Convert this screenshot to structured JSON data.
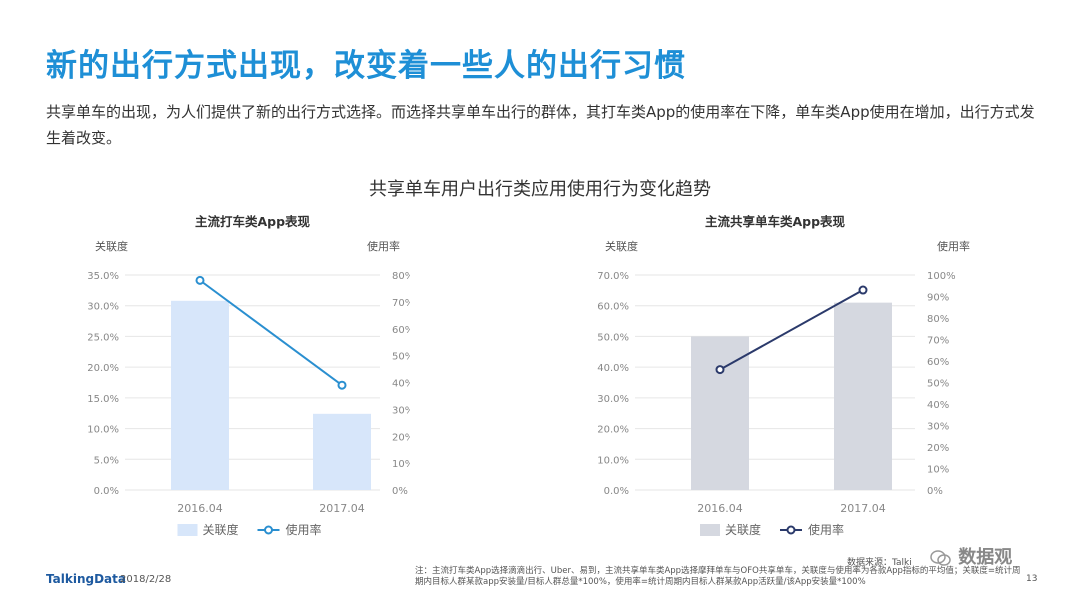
{
  "page": {
    "title": "新的出行方式出现，改变着一些人的出行习惯",
    "description": "共享单车的出现，为人们提供了新的出行方式选择。而选择共享单车出行的群体，其打车类App的使用率在下降，单车类App使用在增加，出行方式发生着改变。",
    "chart_section_title": "共享单车用户出行类应用使用行为变化趋势"
  },
  "footer": {
    "logo": "TalkingData",
    "date": "2018/2/28",
    "source": "数据来源：Talki",
    "note": "注：主流打车类App选择滴滴出行、Uber、易到，主流共享单车类App选择摩拜单车与OFO共享单车，关联度与使用率为各款App指标的平均值；关联度=统计周期内目标人群某款app安装量/目标人群总量*100%，使用率=统计周期内目标人群某款App活跃量/该App安装量*100%",
    "page_number": "13",
    "watermark": "数据观"
  },
  "colors": {
    "title_blue": "#1e8fd6",
    "left_bar": "#d7e6fa",
    "left_line": "#2a8fd0",
    "right_bar": "#d5d8e0",
    "right_line": "#2b3a6b"
  },
  "chart_data": [
    {
      "type": "bar",
      "title": "主流打车类App表现",
      "categories": [
        "2016.04",
        "2017.04"
      ],
      "y_left_label": "关联度",
      "y_right_label": "使用率",
      "y_left_ticks": [
        "35.0%",
        "30.0%",
        "25.0%",
        "20.0%",
        "15.0%",
        "10.0%",
        "5.0%",
        "0.0%"
      ],
      "y_right_ticks": [
        "80%",
        "70%",
        "60%",
        "50%",
        "40%",
        "30%",
        "20%",
        "10%",
        "0%"
      ],
      "ylim_left": [
        0,
        35
      ],
      "ylim_right": [
        0,
        80
      ],
      "series": [
        {
          "name": "关联度",
          "kind": "bar",
          "axis": "left",
          "values": [
            30.8,
            12.4
          ]
        },
        {
          "name": "使用率",
          "kind": "line",
          "axis": "right",
          "values": [
            78,
            39
          ]
        }
      ],
      "legend": "bottom"
    },
    {
      "type": "bar",
      "title": "主流共享单车类App表现",
      "categories": [
        "2016.04",
        "2017.04"
      ],
      "y_left_label": "关联度",
      "y_right_label": "使用率",
      "y_left_ticks": [
        "70.0%",
        "60.0%",
        "50.0%",
        "40.0%",
        "30.0%",
        "20.0%",
        "10.0%",
        "0.0%"
      ],
      "y_right_ticks": [
        "100%",
        "90%",
        "80%",
        "70%",
        "60%",
        "50%",
        "40%",
        "30%",
        "20%",
        "10%",
        "0%"
      ],
      "ylim_left": [
        0,
        70
      ],
      "ylim_right": [
        0,
        100
      ],
      "series": [
        {
          "name": "关联度",
          "kind": "bar",
          "axis": "left",
          "values": [
            50,
            61
          ]
        },
        {
          "name": "使用率",
          "kind": "line",
          "axis": "right",
          "values": [
            56,
            93
          ]
        }
      ],
      "legend": "bottom"
    }
  ]
}
